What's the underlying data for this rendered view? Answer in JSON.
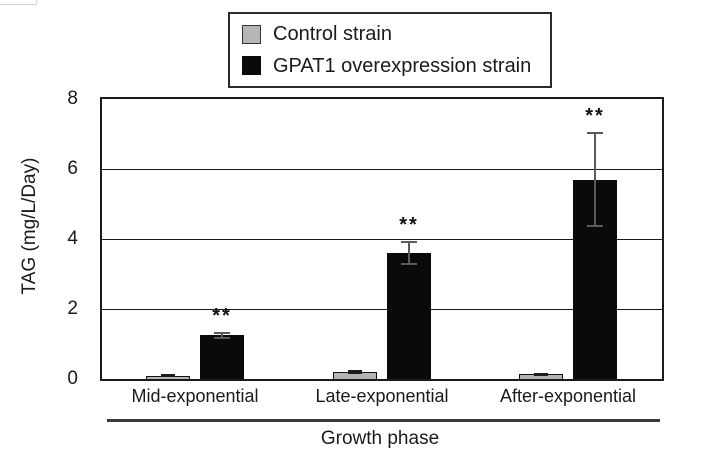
{
  "figure": {
    "background": "#ffffff",
    "text_color": "#1a1a1a",
    "axis_color": "#1a1a1a"
  },
  "legend": {
    "items": [
      {
        "label": "Control strain",
        "color": "#b5b5b5",
        "swatch_border": "#333333"
      },
      {
        "label": "GPAT1 overexpression strain",
        "color": "#0a0a0a",
        "swatch_border": "#0a0a0a"
      }
    ]
  },
  "chart_data": {
    "type": "bar",
    "title": "",
    "categories": [
      "Mid-exponential",
      "Late-exponential",
      "After-exponential"
    ],
    "series": [
      {
        "name": "Control strain",
        "color": "#b5b5b5",
        "error_color": "#1c1c1c",
        "values": [
          0.1,
          0.2,
          0.13
        ],
        "errors": [
          0.04,
          0.06,
          0.05
        ]
      },
      {
        "name": "GPAT1 overexpression strain",
        "color": "#0a0a0a",
        "error_color": "#5a5a5a",
        "values": [
          1.25,
          3.6,
          5.7
        ],
        "errors": [
          0.1,
          0.35,
          1.35
        ]
      }
    ],
    "significance": {
      "series": "GPAT1 overexpression strain",
      "labels": [
        "**",
        "**",
        "**"
      ]
    },
    "xlabel": "Growth phase",
    "ylabel": "TAG (mg/L/Day)",
    "ylim": [
      0,
      8
    ],
    "yticks": [
      0,
      2,
      4,
      6,
      8
    ],
    "grid": true,
    "grid_lines_at": [
      2,
      4,
      6
    ],
    "legend_position": "top-center"
  }
}
